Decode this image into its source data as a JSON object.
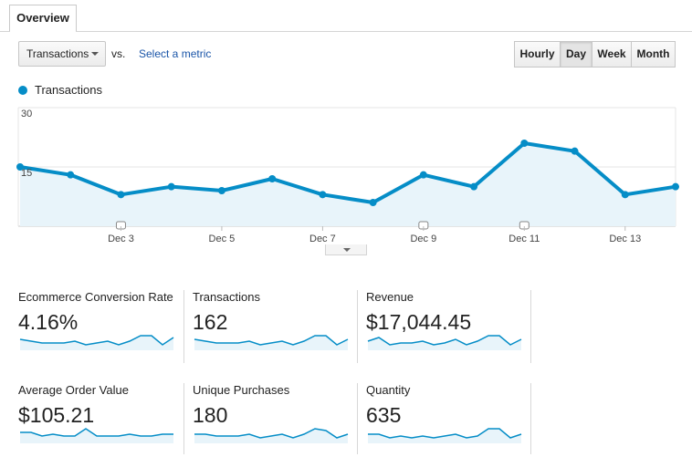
{
  "tabs": {
    "overview_label": "Overview"
  },
  "controls": {
    "metric_select": "Transactions",
    "vs_label": "vs.",
    "select_metric_link": "Select a metric",
    "periods": [
      "Hourly",
      "Day",
      "Week",
      "Month"
    ],
    "active_period": "Day"
  },
  "legend": {
    "series_label": "Transactions",
    "color": "#058dc7"
  },
  "chart_data": {
    "type": "area",
    "series": [
      {
        "name": "Transactions",
        "values": [
          15,
          13,
          8,
          10,
          9,
          12,
          8,
          6,
          13,
          10,
          21,
          19,
          8,
          10
        ]
      }
    ],
    "x_tick_labels": [
      "Dec 3",
      "Dec 5",
      "Dec 7",
      "Dec 9",
      "Dec 11",
      "Dec 13"
    ],
    "y_tick_labels": [
      "30",
      "15"
    ],
    "ylim": [
      0,
      30
    ],
    "annotations_on_days": [
      2,
      8,
      10
    ],
    "grid": true
  },
  "scorecards": [
    {
      "label": "Ecommerce Conversion Rate",
      "value": "4.16%",
      "spark": [
        5,
        4,
        3,
        3,
        3,
        4,
        2,
        3,
        4,
        2,
        4,
        7,
        7,
        2,
        6
      ]
    },
    {
      "label": "Transactions",
      "value": "162",
      "spark": [
        5,
        4,
        3,
        3,
        3,
        4,
        2,
        3,
        4,
        2,
        4,
        7,
        7,
        2,
        5
      ]
    },
    {
      "label": "Revenue",
      "value": "$17,044.45",
      "spark": [
        4,
        6,
        2,
        3,
        3,
        4,
        2,
        3,
        5,
        2,
        4,
        7,
        7,
        2,
        5
      ]
    },
    {
      "label": "Average Order Value",
      "value": "$105.21",
      "spark": [
        5,
        5,
        3,
        4,
        3,
        3,
        7,
        3,
        3,
        3,
        4,
        3,
        3,
        4,
        4
      ]
    },
    {
      "label": "Unique Purchases",
      "value": "180",
      "spark": [
        4,
        4,
        3,
        3,
        3,
        4,
        2,
        3,
        4,
        2,
        4,
        7,
        6,
        2,
        4
      ]
    },
    {
      "label": "Quantity",
      "value": "635",
      "spark": [
        4,
        4,
        2,
        3,
        2,
        3,
        2,
        3,
        4,
        2,
        3,
        7,
        7,
        2,
        4
      ]
    }
  ]
}
